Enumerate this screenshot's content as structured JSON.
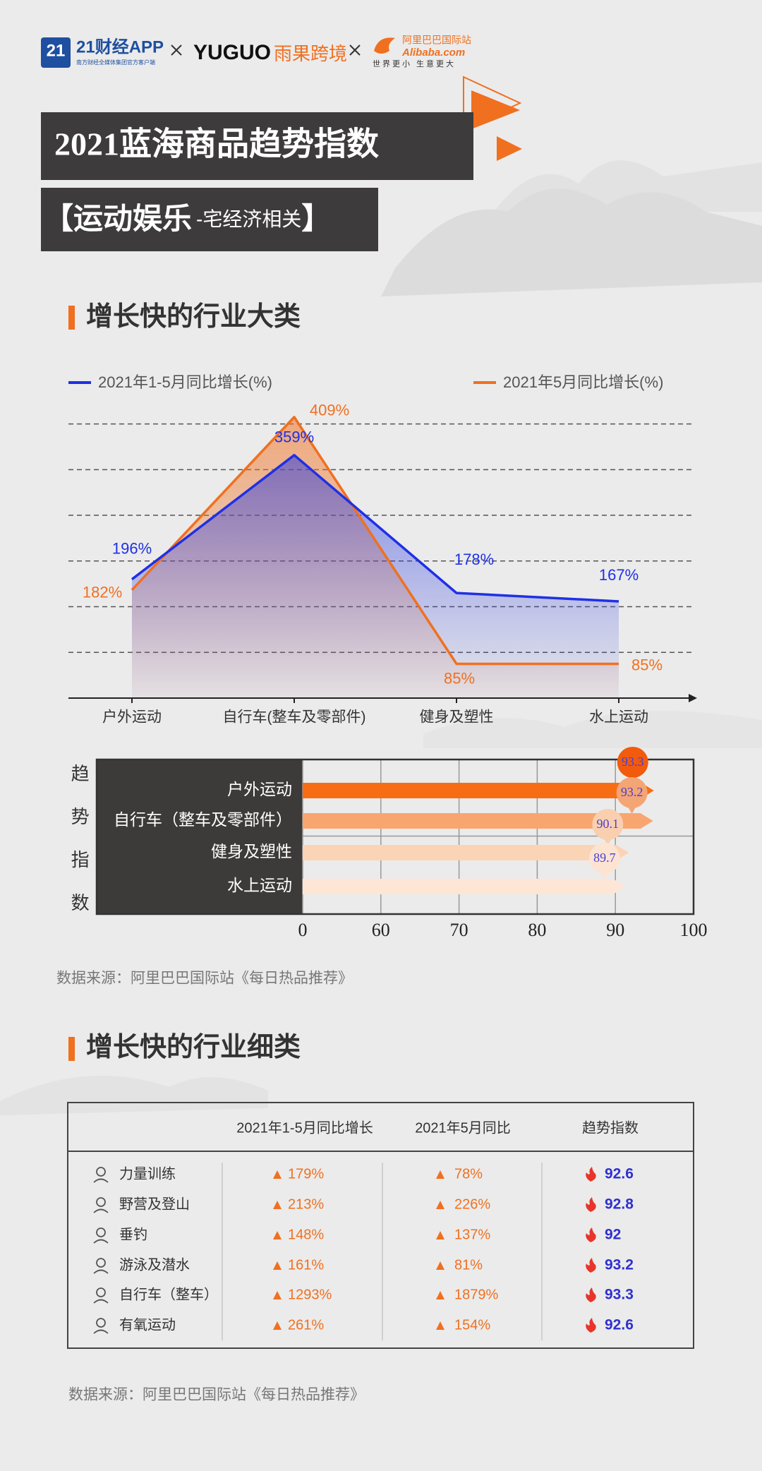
{
  "header": {
    "logo_mark": "21",
    "logo_name": "21财经APP",
    "logo_tagline": "南方财经全媒体集团官方客户端",
    "partner1_name": "YUGUO",
    "partner1_cn": "雨果跨境",
    "partner2_cn": "阿里巴巴国际站",
    "partner2_name": "Alibaba.com",
    "partner2_slogan": "世界更小 生意更大",
    "title": "2021蓝海商品趋势指数",
    "bracket_open": "【",
    "subtitle": "运动娱乐",
    "subtitle_note": "-宅经济相关",
    "bracket_close": "】"
  },
  "sections": [
    {
      "heading": "增长快的行业大类",
      "source": "数据来源：阿里巴巴国际站《每日热品推荐》"
    },
    {
      "heading": "增长快的行业细类",
      "source": "数据来源：阿里巴巴国际站《每日热品推荐》"
    }
  ],
  "chart_data": [
    {
      "type": "line",
      "categories": [
        "户外运动",
        "自行车(整车及零部件)",
        "健身及塑性",
        "水上运动"
      ],
      "series": [
        {
          "name": "2021年1-5月同比增长(%)",
          "color": "#1f30e6",
          "values": [
            196,
            359,
            178,
            167
          ],
          "value_labels": [
            "196%",
            "359%",
            "178%",
            "167%"
          ]
        },
        {
          "name": "2021年5月同比增长(%)",
          "color": "#f07020",
          "values": [
            182,
            409,
            85,
            85
          ],
          "value_labels": [
            "182%",
            "409%",
            "85%",
            "85%"
          ]
        }
      ],
      "ylim": [
        40,
        420
      ],
      "yticks": [
        100,
        160,
        220,
        280,
        340,
        400
      ],
      "grid": true,
      "legend": "top"
    },
    {
      "type": "bar",
      "orientation": "horizontal",
      "ylabel": "趋势指数",
      "categories": [
        "户外运动",
        "自行车（整车及零部件）",
        "健身及塑性",
        "水上运动"
      ],
      "values": [
        93.3,
        93.2,
        90.1,
        89.7
      ],
      "colors": [
        "#f76d14",
        "#f9a56f",
        "#fbd3b5",
        "#fde6d6"
      ],
      "label_colors": [
        "#f25a0e",
        "#f4a574",
        "#f9cfb0",
        "#fde3d2"
      ],
      "xlim": [
        0,
        100
      ],
      "xticks": [
        0,
        60,
        70,
        80,
        90,
        100
      ],
      "xbreak": [
        0,
        60
      ],
      "grid": true
    }
  ],
  "table": {
    "columns": [
      "2021年1-5月同比增长",
      "2021年5月同比",
      "趋势指数"
    ],
    "rows": [
      [
        "力量训练",
        "179%",
        "78%",
        "92.6"
      ],
      [
        "野营及登山",
        "213%",
        "226%",
        "92.8"
      ],
      [
        "垂钓",
        "148%",
        "137%",
        "92"
      ],
      [
        "游泳及潜水",
        "161%",
        "81%",
        "93.2"
      ],
      [
        "自行车（整车）",
        "1293%",
        "1879%",
        "93.3"
      ],
      [
        "有氧运动",
        "261%",
        "154%",
        "92.6"
      ]
    ]
  }
}
